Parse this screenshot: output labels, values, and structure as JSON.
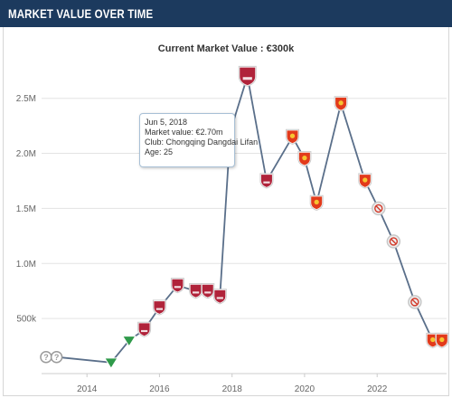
{
  "header": {
    "title": "MARKET VALUE OVER TIME"
  },
  "subtitle": "Current Market Value : €300k",
  "tooltip": {
    "date": "Jun 5, 2018",
    "market_value": "Market value: €2.70m",
    "club": "Club: Chongqing Dangdai Lifan",
    "age": "Age: 25"
  },
  "chart_data": {
    "type": "line",
    "title": "",
    "xlabel": "",
    "ylabel": "",
    "x_ticks": [
      "2014",
      "2016",
      "2018",
      "2020",
      "2022"
    ],
    "y_ticks": [
      "500k",
      "1.0M",
      "1.5M",
      "2.0M",
      "2.5M"
    ],
    "xlim": [
      "2012-10-01",
      "2023-12-01"
    ],
    "ylim": [
      0,
      2900000
    ],
    "grid": "horizontal",
    "line_color": "#5a6f8a",
    "series": [
      {
        "points": [
          {
            "date": "2012-11-15",
            "value": 150000,
            "club": "unknown"
          },
          {
            "date": "2013-03-01",
            "value": 150000,
            "club": "unknown"
          },
          {
            "date": "2014-09-01",
            "value": 100000,
            "club": "green"
          },
          {
            "date": "2015-03-01",
            "value": 300000,
            "club": "green"
          },
          {
            "date": "2015-08-01",
            "value": 400000,
            "club": "chongqing"
          },
          {
            "date": "2016-01-01",
            "value": 600000,
            "club": "chongqing"
          },
          {
            "date": "2016-07-01",
            "value": 800000,
            "club": "chongqing"
          },
          {
            "date": "2017-01-01",
            "value": 750000,
            "club": "chongqing"
          },
          {
            "date": "2017-05-01",
            "value": 750000,
            "club": "chongqing"
          },
          {
            "date": "2017-09-01",
            "value": 700000,
            "club": "chongqing"
          },
          {
            "date": "2017-12-15",
            "value": 2200000,
            "club": "none"
          },
          {
            "date": "2018-06-05",
            "value": 2700000,
            "club": "chongqing"
          },
          {
            "date": "2018-12-15",
            "value": 1750000,
            "club": "chongqing"
          },
          {
            "date": "2019-09-01",
            "value": 2150000,
            "club": "hebei"
          },
          {
            "date": "2020-01-01",
            "value": 1950000,
            "club": "hebei"
          },
          {
            "date": "2020-05-01",
            "value": 1550000,
            "club": "hebei"
          },
          {
            "date": "2021-01-01",
            "value": 2450000,
            "club": "hebei"
          },
          {
            "date": "2021-09-01",
            "value": 1750000,
            "club": "hebei"
          },
          {
            "date": "2022-01-15",
            "value": 1500000,
            "club": "banned"
          },
          {
            "date": "2022-06-15",
            "value": 1200000,
            "club": "banned"
          },
          {
            "date": "2023-01-15",
            "value": 650000,
            "club": "banned"
          },
          {
            "date": "2023-07-15",
            "value": 300000,
            "club": "hebei"
          },
          {
            "date": "2023-10-15",
            "value": 300000,
            "club": "hebei"
          }
        ]
      }
    ],
    "highlight_index": 11
  },
  "colors": {
    "header_bg": "#1c3a5e",
    "grid": "#e3e3e3",
    "chongqing": "#b0233a",
    "hebei": "#e23a1b",
    "green": "#2f9a4a",
    "unknown": "#9a9a9a",
    "banned": "#c8c8c8"
  }
}
